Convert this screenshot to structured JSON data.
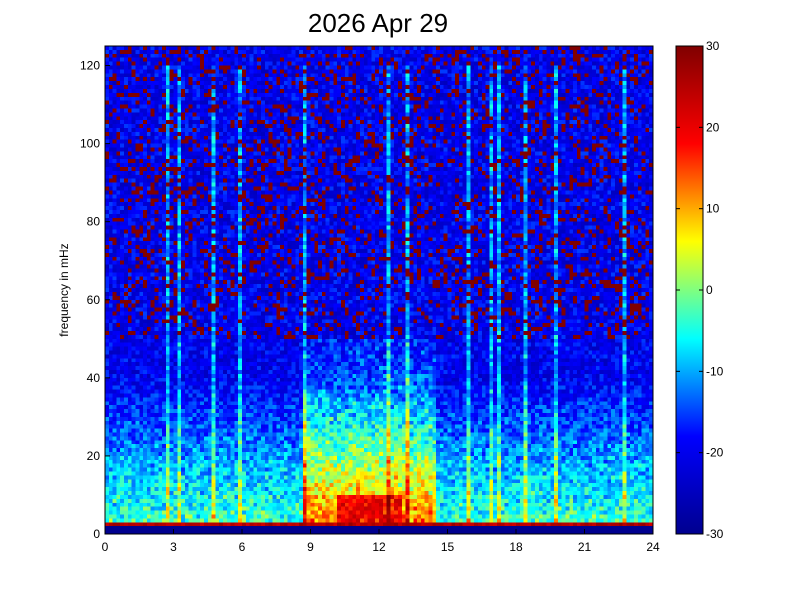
{
  "chart_data": {
    "type": "heatmap",
    "title": "2026 Apr 29",
    "xlabel": "",
    "ylabel": "frequency in mHz",
    "xlim": [
      0,
      24
    ],
    "ylim": [
      0,
      125
    ],
    "x_ticks": [
      "0",
      "3",
      "6",
      "9",
      "12",
      "15",
      "18",
      "21",
      "24"
    ],
    "y_ticks": [
      "0",
      "20",
      "40",
      "60",
      "80",
      "100",
      "120"
    ],
    "colorbar": {
      "colormap": "jet",
      "clim": [
        -30,
        30
      ],
      "ticks": [
        "-30",
        "-20",
        "-10",
        "0",
        "10",
        "20",
        "30"
      ]
    },
    "colormap_stops": [
      "#00008f",
      "#0000ff",
      "#00ffff",
      "#ffff00",
      "#ff0000",
      "#800000"
    ],
    "grid": false,
    "description_values": {
      "x_bins": 144,
      "y_bins": 125,
      "hot_region": {
        "x_range": [
          10,
          13
        ],
        "y_range": [
          0,
          10
        ],
        "approx_value": 25
      },
      "band_region": {
        "x_range": [
          8.5,
          14.5
        ],
        "y_range": [
          0,
          50
        ],
        "approx_value": -5
      },
      "background_value": -20,
      "high_freq_patches_value": 30,
      "vertical_streaks_x": [
        2.6,
        3.1,
        4.6,
        5.8,
        8.7,
        12.4,
        13.1,
        15.8,
        16.9,
        17.2,
        18.3,
        19.6,
        22.6
      ]
    }
  }
}
